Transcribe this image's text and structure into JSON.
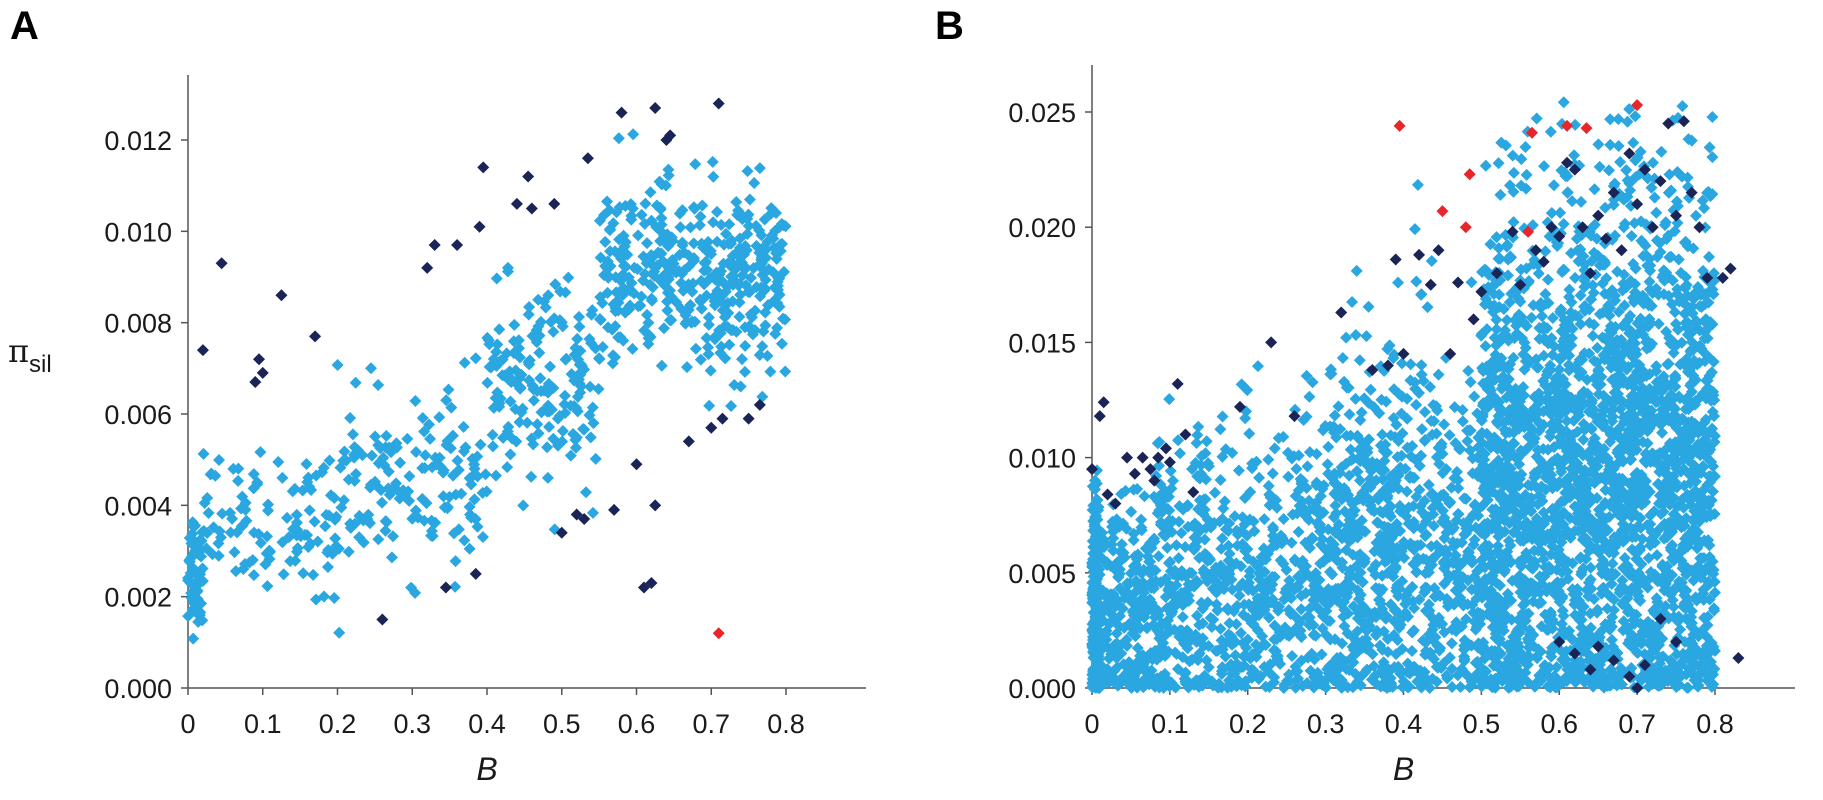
{
  "chart_data": [
    {
      "type": "scatter",
      "panel_label": "A",
      "xlabel": "B",
      "ylabel_main": "π",
      "ylabel_sub": "sil",
      "xlim": [
        0,
        0.8
      ],
      "ylim": [
        0,
        0.012
      ],
      "xticks": [
        "0",
        "0.1",
        "0.2",
        "0.3",
        "0.4",
        "0.5",
        "0.6",
        "0.7",
        "0.8"
      ],
      "yticks": [
        "0.000",
        "0.002",
        "0.004",
        "0.006",
        "0.008",
        "0.010",
        "0.012"
      ],
      "grid": false,
      "colors": {
        "bulk": "#2aa6e0",
        "outlier": "#1a2456",
        "extreme": "#e8262a"
      },
      "bulk_bands": [
        {
          "x_range": [
            0.0,
            0.02
          ],
          "y_mid": 0.0026,
          "y_spread": 0.0014,
          "count": 60
        },
        {
          "x_range": [
            0.02,
            0.2
          ],
          "y_mid": 0.0036,
          "y_spread": 0.0016,
          "count": 110
        },
        {
          "x_range": [
            0.2,
            0.4
          ],
          "y_mid": 0.0045,
          "y_spread": 0.0021,
          "count": 150
        },
        {
          "x_range": [
            0.4,
            0.55
          ],
          "y_mid": 0.0066,
          "y_spread": 0.0024,
          "count": 170
        },
        {
          "x_range": [
            0.55,
            0.8
          ],
          "y_mid": 0.009,
          "y_spread": 0.0022,
          "count": 420
        }
      ],
      "outlier_points": [
        [
          0.02,
          0.0074
        ],
        [
          0.045,
          0.0093
        ],
        [
          0.09,
          0.0067
        ],
        [
          0.095,
          0.0072
        ],
        [
          0.1,
          0.0069
        ],
        [
          0.125,
          0.0086
        ],
        [
          0.17,
          0.0077
        ],
        [
          0.26,
          0.0015
        ],
        [
          0.32,
          0.0092
        ],
        [
          0.33,
          0.0097
        ],
        [
          0.345,
          0.0022
        ],
        [
          0.36,
          0.0097
        ],
        [
          0.39,
          0.0101
        ],
        [
          0.385,
          0.0025
        ],
        [
          0.395,
          0.0114
        ],
        [
          0.44,
          0.0106
        ],
        [
          0.455,
          0.0112
        ],
        [
          0.46,
          0.0105
        ],
        [
          0.49,
          0.0106
        ],
        [
          0.5,
          0.0034
        ],
        [
          0.52,
          0.0038
        ],
        [
          0.53,
          0.0037
        ],
        [
          0.535,
          0.0116
        ],
        [
          0.58,
          0.0126
        ],
        [
          0.57,
          0.0039
        ],
        [
          0.6,
          0.0049
        ],
        [
          0.61,
          0.0022
        ],
        [
          0.62,
          0.0023
        ],
        [
          0.625,
          0.0127
        ],
        [
          0.625,
          0.004
        ],
        [
          0.64,
          0.012
        ],
        [
          0.645,
          0.0121
        ],
        [
          0.67,
          0.0054
        ],
        [
          0.7,
          0.0057
        ],
        [
          0.71,
          0.0128
        ],
        [
          0.715,
          0.0059
        ],
        [
          0.75,
          0.0059
        ],
        [
          0.765,
          0.0062
        ]
      ],
      "extreme_points": [
        [
          0.71,
          0.0012
        ]
      ]
    },
    {
      "type": "scatter",
      "panel_label": "B",
      "xlabel": "B",
      "xlim": [
        0,
        0.8
      ],
      "ylim": [
        0,
        0.025
      ],
      "xticks": [
        "0",
        "0.1",
        "0.2",
        "0.3",
        "0.4",
        "0.5",
        "0.6",
        "0.7",
        "0.8"
      ],
      "yticks": [
        "0.000",
        "0.005",
        "0.010",
        "0.015",
        "0.020",
        "0.025"
      ],
      "grid": false,
      "colors": {
        "bulk": "#2aa6e0",
        "outlier": "#1a2456",
        "extreme": "#e8262a"
      },
      "bulk_bands": [
        {
          "x_range": [
            0.0,
            0.01
          ],
          "y_mid": 0.003,
          "y_spread": 0.006,
          "count": 260
        },
        {
          "x_range": [
            0.01,
            0.08
          ],
          "y_mid": 0.003,
          "y_spread": 0.0055,
          "count": 240
        },
        {
          "x_range": [
            0.08,
            0.3
          ],
          "y_mid": 0.0042,
          "y_spread": 0.008,
          "count": 650
        },
        {
          "x_range": [
            0.3,
            0.5
          ],
          "y_mid": 0.0058,
          "y_spread": 0.01,
          "count": 800
        },
        {
          "x_range": [
            0.5,
            0.6
          ],
          "y_mid": 0.0085,
          "y_spread": 0.014,
          "count": 800
        },
        {
          "x_range": [
            0.6,
            0.8
          ],
          "y_mid": 0.0095,
          "y_spread": 0.015,
          "count": 1700
        }
      ],
      "outlier_points": [
        [
          0.0,
          0.0095
        ],
        [
          0.01,
          0.0118
        ],
        [
          0.015,
          0.0124
        ],
        [
          0.02,
          0.0084
        ],
        [
          0.03,
          0.008
        ],
        [
          0.045,
          0.01
        ],
        [
          0.055,
          0.0093
        ],
        [
          0.065,
          0.01
        ],
        [
          0.075,
          0.0095
        ],
        [
          0.08,
          0.009
        ],
        [
          0.085,
          0.01
        ],
        [
          0.095,
          0.0104
        ],
        [
          0.1,
          0.0098
        ],
        [
          0.11,
          0.0132
        ],
        [
          0.12,
          0.011
        ],
        [
          0.13,
          0.0085
        ],
        [
          0.19,
          0.0122
        ],
        [
          0.23,
          0.015
        ],
        [
          0.26,
          0.0118
        ],
        [
          0.32,
          0.0163
        ],
        [
          0.36,
          0.0138
        ],
        [
          0.38,
          0.014
        ],
        [
          0.39,
          0.0186
        ],
        [
          0.4,
          0.0145
        ],
        [
          0.42,
          0.0188
        ],
        [
          0.435,
          0.0175
        ],
        [
          0.445,
          0.019
        ],
        [
          0.46,
          0.0145
        ],
        [
          0.47,
          0.0176
        ],
        [
          0.49,
          0.016
        ],
        [
          0.5,
          0.0172
        ],
        [
          0.52,
          0.018
        ],
        [
          0.54,
          0.0198
        ],
        [
          0.55,
          0.0175
        ],
        [
          0.57,
          0.019
        ],
        [
          0.58,
          0.0185
        ],
        [
          0.59,
          0.02
        ],
        [
          0.6,
          0.0196
        ],
        [
          0.61,
          0.0228
        ],
        [
          0.62,
          0.0225
        ],
        [
          0.63,
          0.02
        ],
        [
          0.64,
          0.018
        ],
        [
          0.65,
          0.0205
        ],
        [
          0.66,
          0.0195
        ],
        [
          0.67,
          0.0215
        ],
        [
          0.68,
          0.019
        ],
        [
          0.69,
          0.0232
        ],
        [
          0.7,
          0.021
        ],
        [
          0.71,
          0.0225
        ],
        [
          0.72,
          0.02
        ],
        [
          0.73,
          0.022
        ],
        [
          0.74,
          0.0245
        ],
        [
          0.75,
          0.0205
        ],
        [
          0.76,
          0.0246
        ],
        [
          0.77,
          0.0215
        ],
        [
          0.78,
          0.02
        ],
        [
          0.79,
          0.0178
        ],
        [
          0.81,
          0.0178
        ],
        [
          0.82,
          0.0182
        ],
        [
          0.6,
          0.002
        ],
        [
          0.62,
          0.0015
        ],
        [
          0.65,
          0.0018
        ],
        [
          0.67,
          0.0012
        ],
        [
          0.69,
          0.0005
        ],
        [
          0.7,
          0.0
        ],
        [
          0.71,
          0.001
        ],
        [
          0.73,
          0.003
        ],
        [
          0.75,
          0.002
        ],
        [
          0.83,
          0.0013
        ],
        [
          0.64,
          0.0008
        ]
      ],
      "extreme_points": [
        [
          0.395,
          0.0244
        ],
        [
          0.45,
          0.0207
        ],
        [
          0.48,
          0.02
        ],
        [
          0.485,
          0.0223
        ],
        [
          0.56,
          0.0198
        ],
        [
          0.565,
          0.0241
        ],
        [
          0.61,
          0.0244
        ],
        [
          0.635,
          0.0243
        ],
        [
          0.7,
          0.0253
        ]
      ]
    }
  ]
}
